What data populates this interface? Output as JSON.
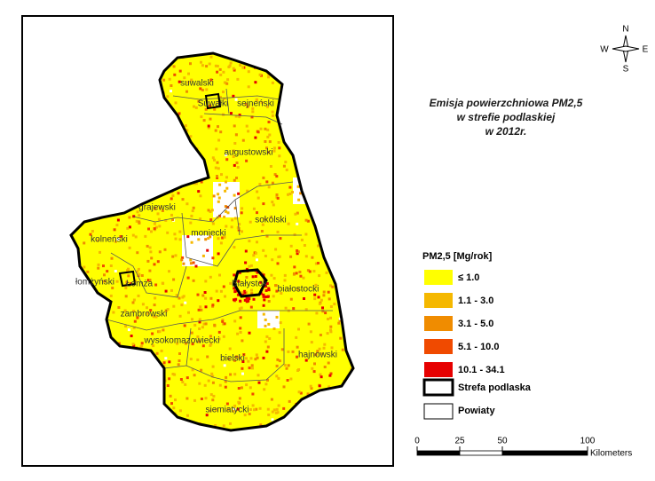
{
  "title": [
    "Emisja powierzchniowa PM2,5",
    "w strefie podlaskiej",
    "w 2012r."
  ],
  "compass": {
    "n": "N",
    "s": "S",
    "e": "E",
    "w": "W"
  },
  "legend": {
    "title": "PM2,5 [Mg/rok]",
    "classes": [
      {
        "label": "≤ 1.0",
        "color": "#ffff00"
      },
      {
        "label": "1.1 - 3.0",
        "color": "#f5b800"
      },
      {
        "label": "3.1 - 5.0",
        "color": "#f08c00"
      },
      {
        "label": "5.1 - 10.0",
        "color": "#f04a00"
      },
      {
        "label": "10.1 - 34.1",
        "color": "#e60000"
      }
    ],
    "zone": "Strefa podlaska",
    "counties": "Powiaty"
  },
  "county_labels": [
    "suwalski",
    "Suwałki",
    "sejneński",
    "augustowski",
    "grajewski",
    "sokólski",
    "moniecki",
    "kolneński",
    "łomżyński",
    "Łomża",
    "Białystok",
    "białostocki",
    "zambrowski",
    "wysokomazowiecki",
    "bielski",
    "hajnowski",
    "siemiatycki"
  ],
  "scale": {
    "ticks": [
      0,
      25,
      50,
      100
    ],
    "unit": "Kilometers"
  }
}
